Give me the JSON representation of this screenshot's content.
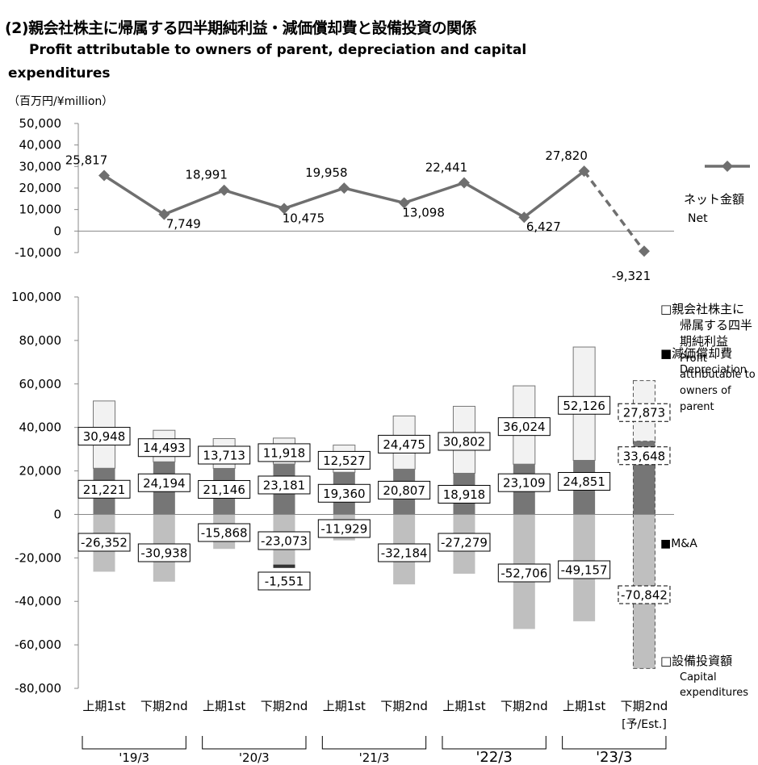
{
  "title": "(2)親会社株主に帰属する四半期純利益・減価償却費と設備投資の関係",
  "subtitle_en_line1": "Profit attributable to owners of parent, depreciation and capital",
  "subtitle_en_line2": "expenditures",
  "unit": "（百万円/¥million）",
  "colors": {
    "net_line": "#6f6f6f",
    "profit": "#f2f2f2",
    "depreciation": "#767676",
    "ma": "#333333",
    "capex": "#bfbfbf"
  },
  "chart_data": [
    {
      "type": "line",
      "ylim": [
        -10000,
        50000
      ],
      "y_ticks": [
        "50,000",
        "40,000",
        "30,000",
        "20,000",
        "10,000",
        "0",
        "-10,000"
      ],
      "legend_label_jp": "ネット金額",
      "legend_label_en": "Net",
      "legend_position": "right",
      "series": [
        {
          "name": "ネット金額 Net",
          "values": [
            25817,
            7749,
            18991,
            10475,
            19958,
            13098,
            22441,
            6427,
            27820,
            -9321
          ],
          "labels": [
            "25,817",
            "7,749",
            "18,991",
            "10,475",
            "19,958",
            "13,098",
            "22,441",
            "6,427",
            "27,820",
            "-9,321"
          ]
        }
      ],
      "forecast_last_point": true
    },
    {
      "type": "bar",
      "stacked": true,
      "ylim": [
        -80000,
        100000
      ],
      "y_ticks": [
        "100,000",
        "80,000",
        "60,000",
        "40,000",
        "20,000",
        "0",
        "-20,000",
        "-40,000",
        "-60,000",
        "-80,000"
      ],
      "categories": [
        "上期1st",
        "下期2nd",
        "上期1st",
        "下期2nd",
        "上期1st",
        "下期2nd",
        "上期1st",
        "下期2nd",
        "上期1st",
        "下期2nd"
      ],
      "est_label": "[予/Est.]",
      "fiscal_years": [
        "'19/3",
        "'20/3",
        "'21/3",
        "'22/3",
        "'23/3"
      ],
      "legend_position": "right",
      "legend": {
        "profit": [
          "□親会社株主に",
          "帰属する四半",
          "期純利益",
          "Profit",
          "attributable to",
          "owners of",
          "parent"
        ],
        "depreciation": [
          "■減価償却費",
          "Depreciation"
        ],
        "ma": [
          "■M&A"
        ],
        "capex": [
          "□設備投資額",
          "Capital",
          "expenditures"
        ]
      },
      "series": [
        {
          "name": "Depreciation",
          "values": [
            21221,
            24194,
            21146,
            23181,
            19360,
            20807,
            18918,
            23109,
            24851,
            33648
          ],
          "labels": [
            "21,221",
            "24,194",
            "21,146",
            "23,181",
            "19,360",
            "20,807",
            "18,918",
            "23,109",
            "24,851",
            "33,648"
          ]
        },
        {
          "name": "Profit attributable to owners of parent",
          "values": [
            30948,
            14493,
            13713,
            11918,
            12527,
            24475,
            30802,
            36024,
            52126,
            27873
          ],
          "labels": [
            "30,948",
            "14,493",
            "13,713",
            "11,918",
            "12,527",
            "24,475",
            "30,802",
            "36,024",
            "52,126",
            "27,873"
          ]
        },
        {
          "name": "Capital expenditures",
          "values": [
            -26352,
            -30938,
            -15868,
            -23073,
            -11929,
            -32184,
            -27279,
            -52706,
            -49157,
            -70842
          ],
          "labels": [
            "-26,352",
            "-30,938",
            "-15,868",
            "-23,073",
            "-11,929",
            "-32,184",
            "-27,279",
            "-52,706",
            "-49,157",
            "-70,842"
          ]
        },
        {
          "name": "M&A",
          "values": [
            0,
            0,
            0,
            -1551,
            0,
            0,
            0,
            0,
            0,
            0
          ],
          "labels": [
            "",
            "",
            "",
            "-1,551",
            "",
            "",
            "",
            "",
            "",
            ""
          ]
        }
      ],
      "forecast_last_bar": true
    }
  ]
}
